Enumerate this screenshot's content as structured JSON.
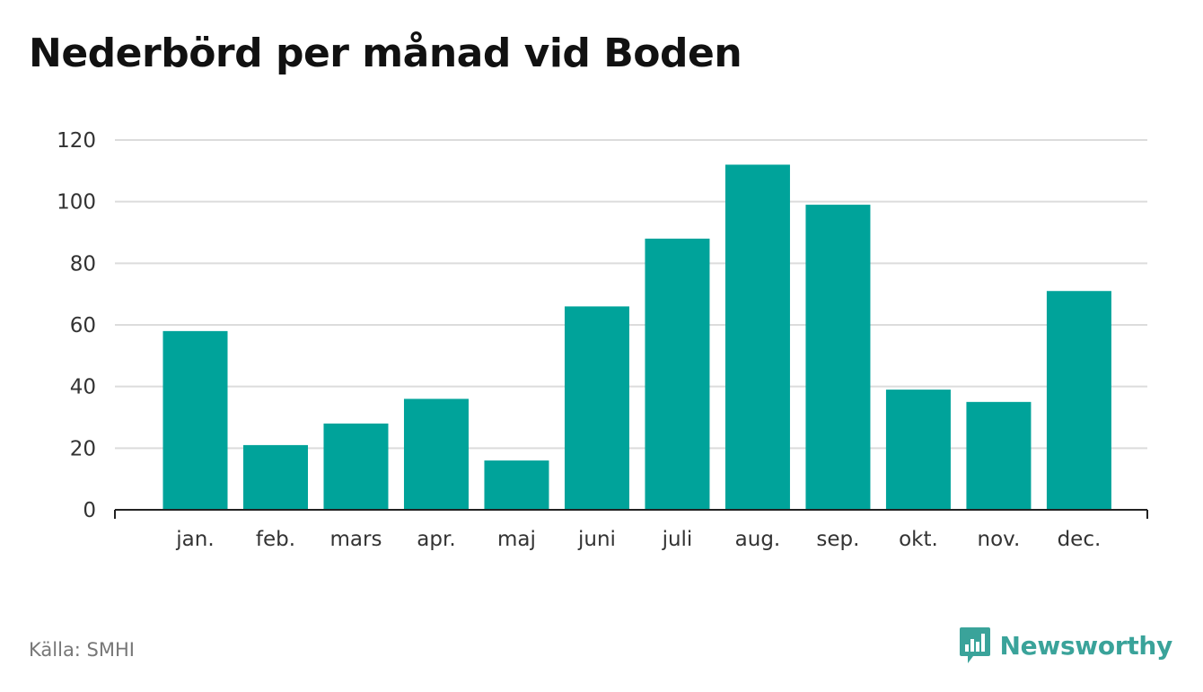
{
  "title": "Nederbörd per månad vid Boden",
  "source": "Källa: SMHI",
  "brand": {
    "name": "Newsworthy",
    "icon": "bar-chart-speech-bubble-icon",
    "color": "#3aa39a"
  },
  "chart_data": {
    "type": "bar",
    "categories": [
      "jan.",
      "feb.",
      "mars",
      "apr.",
      "maj",
      "juni",
      "juli",
      "aug.",
      "sep.",
      "okt.",
      "nov.",
      "dec."
    ],
    "values": [
      58,
      21,
      28,
      36,
      16,
      66,
      88,
      112,
      99,
      39,
      35,
      71
    ],
    "ylim": [
      0,
      120
    ],
    "yticks": [
      0,
      20,
      40,
      60,
      80,
      100,
      120
    ],
    "grid": true,
    "bar_color": "#00a39a"
  }
}
